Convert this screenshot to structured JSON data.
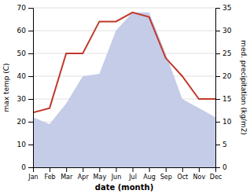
{
  "chart_data": {
    "type": "line",
    "categories": [
      "Jan",
      "Feb",
      "Mar",
      "Apr",
      "May",
      "Jun",
      "Jul",
      "Aug",
      "Sep",
      "Oct",
      "Nov",
      "Dec"
    ],
    "series": [
      {
        "type": "area",
        "color": "#c5cce8",
        "values": [
          22,
          19,
          28,
          40,
          41,
          60,
          68,
          68,
          50,
          30,
          26,
          22
        ]
      },
      {
        "type": "line",
        "color": "#c0392b",
        "axis": "y2",
        "values": [
          12,
          13,
          25,
          25,
          32,
          32,
          34,
          33,
          24,
          20,
          15,
          15
        ]
      }
    ],
    "x_label": "date (month)",
    "y_label": "max temp (C)",
    "y2_label": "med. precipitation (kg/m2)",
    "ylim": [
      0,
      70
    ],
    "yticks": [
      0,
      10,
      20,
      30,
      40,
      50,
      60,
      70
    ],
    "y2lim": [
      0,
      35
    ],
    "y2ticks": [
      0,
      5,
      10,
      15,
      20,
      25,
      30,
      35
    ],
    "grid": true
  }
}
